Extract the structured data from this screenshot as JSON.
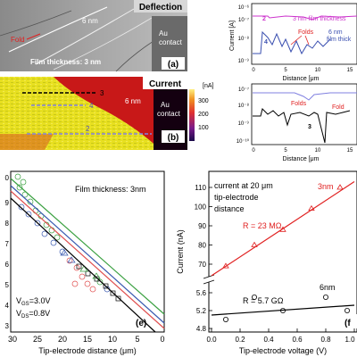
{
  "panel_a": {
    "header": "Deflection",
    "label_6nm": "6 nm",
    "label_au": "Au",
    "label_contact": "contact",
    "label_fold": "Fold",
    "label_film": "Film thickness: 3 nm",
    "panel_letter": "(a)"
  },
  "panel_b": {
    "header": "Current",
    "label_6nm": "6 nm",
    "label_au": "Au",
    "label_contact": "contact",
    "panel_letter": "(b)",
    "line_labels": [
      "3",
      "4",
      "2"
    ],
    "colorbar_unit": "[nA]",
    "colorbar_ticks": [
      "300",
      "200",
      "100"
    ]
  },
  "panel_c": {
    "ylabel": "Current [A]",
    "xlabel": "Distance [μm",
    "yticks": [
      "10⁻⁶",
      "10⁻⁷",
      "10⁻⁸",
      "10⁻⁹"
    ],
    "xticks": [
      "0",
      "5",
      "10",
      "15"
    ],
    "series_2_label": "2",
    "series_2_text": "3 nm film thickness",
    "series_4_label": "4",
    "series_4_text_1": "6 nm",
    "series_4_text_2": "film thick",
    "folds_label": "Folds",
    "colors": {
      "series_2": "#cc33cc",
      "series_4": "#3a4fb0",
      "annotation": "#e02020"
    }
  },
  "panel_d": {
    "xlabel": "Distance [μm",
    "yticks": [
      "10⁻⁷",
      "10⁻⁸",
      "10⁻⁹",
      "10⁻¹⁰"
    ],
    "xticks": [
      "0",
      "5",
      "10",
      "15"
    ],
    "folds_label_1": "Folds",
    "folds_label_2": "Fold",
    "series_3_label": "3",
    "colors": {
      "upper": "#8080e0",
      "lower": "#000000"
    }
  },
  "panel_e": {
    "annotation": "Film thickness: 3nm",
    "vgs_label": "V",
    "vgs_sub": "GS",
    "vgs_value": "=3.0V",
    "vds_label": "V",
    "vds_sub": "DS",
    "vds_value": "=0.8V",
    "panel_letter": "(e)",
    "xlabel": "Tip-electrode distance (μm)",
    "xticks": [
      "30",
      "25",
      "20",
      "15",
      "10",
      "5",
      "0"
    ],
    "ytick_partial": [
      "0",
      "9",
      "8",
      "7",
      "6",
      "5",
      "4",
      "3"
    ]
  },
  "panel_f": {
    "annotation_1": "current at 20 μm",
    "annotation_2": "tip-electrode",
    "annotation_3": "distance",
    "label_3nm": "3nm",
    "label_6nm": "6nm",
    "fit_3nm": "R = 23 MΩ",
    "fit_6nm": "R = 5.7 GΩ",
    "ylabel": "Current (nA)",
    "xlabel": "Tip-electrode voltage (V)",
    "yticks_upper": [
      "110",
      "100",
      "90",
      "80",
      "70"
    ],
    "yticks_lower": [
      "5.6",
      "5.2",
      "4.8"
    ],
    "xticks": [
      "0.0",
      "0.2",
      "0.4",
      "0.6",
      "0.8",
      "1.0"
    ],
    "panel_letter": "(f",
    "colors": {
      "fit_3nm": "#e02020",
      "fit_6nm": "#000000"
    }
  },
  "chart_data": [
    {
      "type": "line",
      "panel": "f",
      "title": "",
      "xlabel": "Tip-electrode voltage (V)",
      "ylabel": "Current (nA)",
      "xlim": [
        0.0,
        1.0
      ],
      "series": [
        {
          "name": "3nm",
          "x": [
            0.1,
            0.3,
            0.5,
            0.7,
            0.9
          ],
          "y": [
            69,
            80,
            88,
            99,
            110
          ]
        },
        {
          "name": "6nm",
          "x": [
            0.1,
            0.3,
            0.5,
            0.8,
            0.95
          ],
          "y": [
            5.0,
            5.5,
            5.2,
            5.5,
            5.2
          ]
        }
      ]
    }
  ]
}
